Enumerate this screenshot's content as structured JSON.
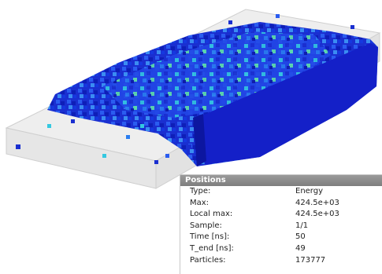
{
  "panel": {
    "title": "Positions",
    "rows": [
      [
        "Type:",
        "Energy"
      ],
      [
        "Max:",
        "424.5e+03"
      ],
      [
        "Local max:",
        "424.5e+03"
      ],
      [
        "Sample:",
        "1/1"
      ],
      [
        "Time [ns]:",
        "50"
      ],
      [
        "T_end [ns]:",
        "49"
      ],
      [
        "Particles:",
        "173777"
      ]
    ]
  }
}
